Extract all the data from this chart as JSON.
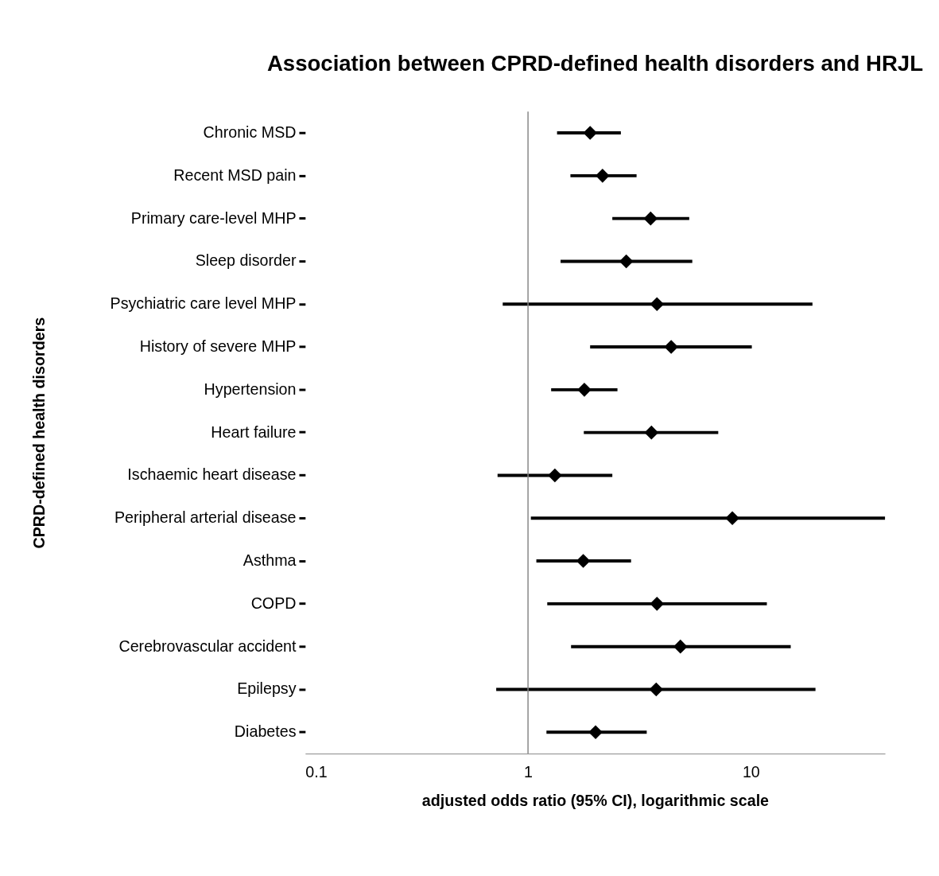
{
  "chart_data": {
    "type": "scatter",
    "orientation": "horizontal",
    "title": "Association between CPRD-defined health disorders and HRJL",
    "xlabel": "adjusted odds ratio (95% CI), logarithmic scale",
    "ylabel": "CPRD-defined health disorders",
    "categories": [
      "Chronic MSD",
      "Recent MSD pain",
      "Primary care-level MHP",
      "Sleep disorder",
      "Psychiatric care level MHP",
      "History of severe MHP",
      "Hypertension",
      "Heart failure",
      "Ischaemic heart disease",
      "Peripheral arterial disease",
      "Asthma",
      "COPD",
      "Cerebrovascular accident",
      "Epilepsy",
      "Diabetes"
    ],
    "series": [
      {
        "color": "#000000",
        "values": [
          1.9,
          2.16,
          3.55,
          2.76,
          3.79,
          4.39,
          1.79,
          3.58,
          1.32,
          8.26,
          1.77,
          3.79,
          4.83,
          3.76,
          2.01
        ],
        "errors": [
          [
            1.35,
            2.61
          ],
          [
            1.55,
            3.07
          ],
          [
            2.39,
            5.29
          ],
          [
            1.4,
            5.46
          ],
          [
            0.77,
            18.9
          ],
          [
            1.9,
            10.1
          ],
          [
            1.27,
            2.52
          ],
          [
            1.78,
            7.14
          ],
          [
            0.73,
            2.39
          ],
          [
            1.03,
            40
          ],
          [
            1.09,
            2.9
          ],
          [
            1.22,
            11.8
          ],
          [
            1.56,
            15.1
          ],
          [
            0.72,
            19.5
          ],
          [
            1.21,
            3.41
          ]
        ]
      }
    ],
    "xlim": [
      0.1,
      40
    ],
    "xticks": [
      0.1,
      1,
      10
    ],
    "log": "x",
    "marker": "diamond",
    "ref_lines": [
      {
        "axis": "x",
        "value": 1,
        "color": "#868686"
      }
    ]
  }
}
